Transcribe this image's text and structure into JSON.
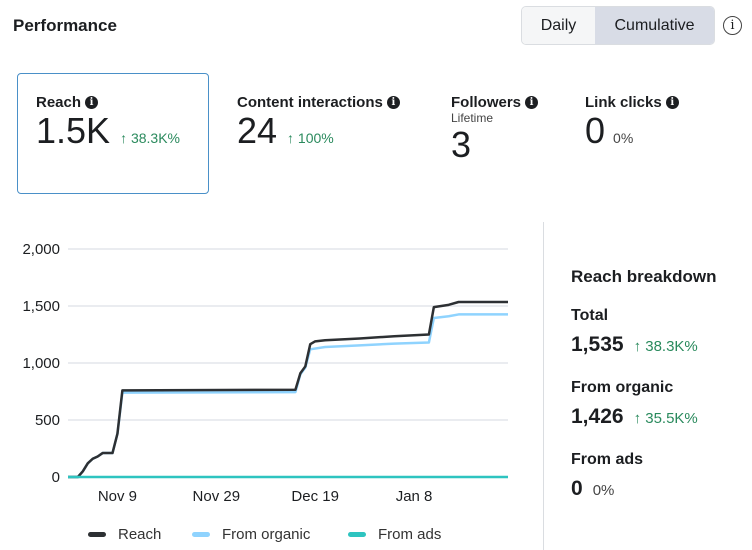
{
  "header": {
    "title": "Performance",
    "toggle": {
      "daily": "Daily",
      "cumulative": "Cumulative",
      "selected": "Cumulative"
    },
    "info_icon": "info-circle-icon"
  },
  "metrics": [
    {
      "label": "Reach",
      "value": "1.5K",
      "change": "↑ 38.3K%",
      "selected": true
    },
    {
      "label": "Content interactions",
      "value": "24",
      "change": "↑ 100%"
    },
    {
      "label": "Followers",
      "sublabel": "Lifetime",
      "value": "3"
    },
    {
      "label": "Link clicks",
      "value": "0",
      "change": "0%"
    }
  ],
  "breakdown": {
    "title": "Reach breakdown",
    "total": {
      "label": "Total",
      "value": "1,535",
      "change": "↑ 38.3K%"
    },
    "organic": {
      "label": "From organic",
      "value": "1,426",
      "change": "↑ 35.5K%"
    },
    "ads": {
      "label": "From ads",
      "value": "0",
      "change": "0%"
    }
  },
  "colors": {
    "reach": "#2d3033",
    "organic": "#8fd3fe",
    "ads": "#2ec4c0",
    "positive": "#2a8a5d"
  },
  "chart_data": {
    "type": "line",
    "ylim": [
      0,
      2000
    ],
    "yticks": [
      "2,000",
      "1,500",
      "1,000",
      "500",
      "0"
    ],
    "ytick_values": [
      2000,
      1500,
      1000,
      500,
      0
    ],
    "xticks": [
      "Nov 9",
      "Nov 29",
      "Dec 19",
      "Jan 8"
    ],
    "xtick_dates": [
      "2023-11-09",
      "2023-11-29",
      "2023-12-19",
      "2024-01-08"
    ],
    "xlim": [
      "2023-10-30",
      "2024-01-27"
    ],
    "grid": true,
    "legend": "bottom",
    "series": [
      {
        "name": "Reach",
        "points": [
          [
            "2023-10-30",
            0
          ],
          [
            "2023-11-01",
            0
          ],
          [
            "2023-11-02",
            50
          ],
          [
            "2023-11-03",
            120
          ],
          [
            "2023-11-04",
            160
          ],
          [
            "2023-11-05",
            180
          ],
          [
            "2023-11-06",
            210
          ],
          [
            "2023-11-08",
            210
          ],
          [
            "2023-11-09",
            380
          ],
          [
            "2023-11-10",
            760
          ],
          [
            "2023-12-15",
            765
          ],
          [
            "2023-12-16",
            910
          ],
          [
            "2023-12-17",
            970
          ],
          [
            "2023-12-18",
            1165
          ],
          [
            "2023-12-19",
            1190
          ],
          [
            "2023-12-21",
            1200
          ],
          [
            "2023-12-28",
            1215
          ],
          [
            "2024-01-04",
            1235
          ],
          [
            "2024-01-11",
            1250
          ],
          [
            "2024-01-12",
            1490
          ],
          [
            "2024-01-15",
            1510
          ],
          [
            "2024-01-17",
            1535
          ],
          [
            "2024-01-27",
            1535
          ]
        ]
      },
      {
        "name": "From organic",
        "points": [
          [
            "2023-10-30",
            0
          ],
          [
            "2023-11-01",
            0
          ],
          [
            "2023-11-02",
            50
          ],
          [
            "2023-11-03",
            120
          ],
          [
            "2023-11-04",
            160
          ],
          [
            "2023-11-05",
            180
          ],
          [
            "2023-11-06",
            210
          ],
          [
            "2023-11-08",
            210
          ],
          [
            "2023-11-09",
            380
          ],
          [
            "2023-11-10",
            740
          ],
          [
            "2023-12-15",
            745
          ],
          [
            "2023-12-16",
            900
          ],
          [
            "2023-12-17",
            960
          ],
          [
            "2023-12-18",
            1120
          ],
          [
            "2023-12-21",
            1140
          ],
          [
            "2023-12-28",
            1155
          ],
          [
            "2024-01-04",
            1170
          ],
          [
            "2024-01-11",
            1180
          ],
          [
            "2024-01-12",
            1395
          ],
          [
            "2024-01-15",
            1410
          ],
          [
            "2024-01-17",
            1426
          ],
          [
            "2024-01-27",
            1426
          ]
        ]
      },
      {
        "name": "From ads",
        "points": [
          [
            "2023-10-30",
            0
          ],
          [
            "2024-01-27",
            0
          ]
        ]
      }
    ]
  }
}
